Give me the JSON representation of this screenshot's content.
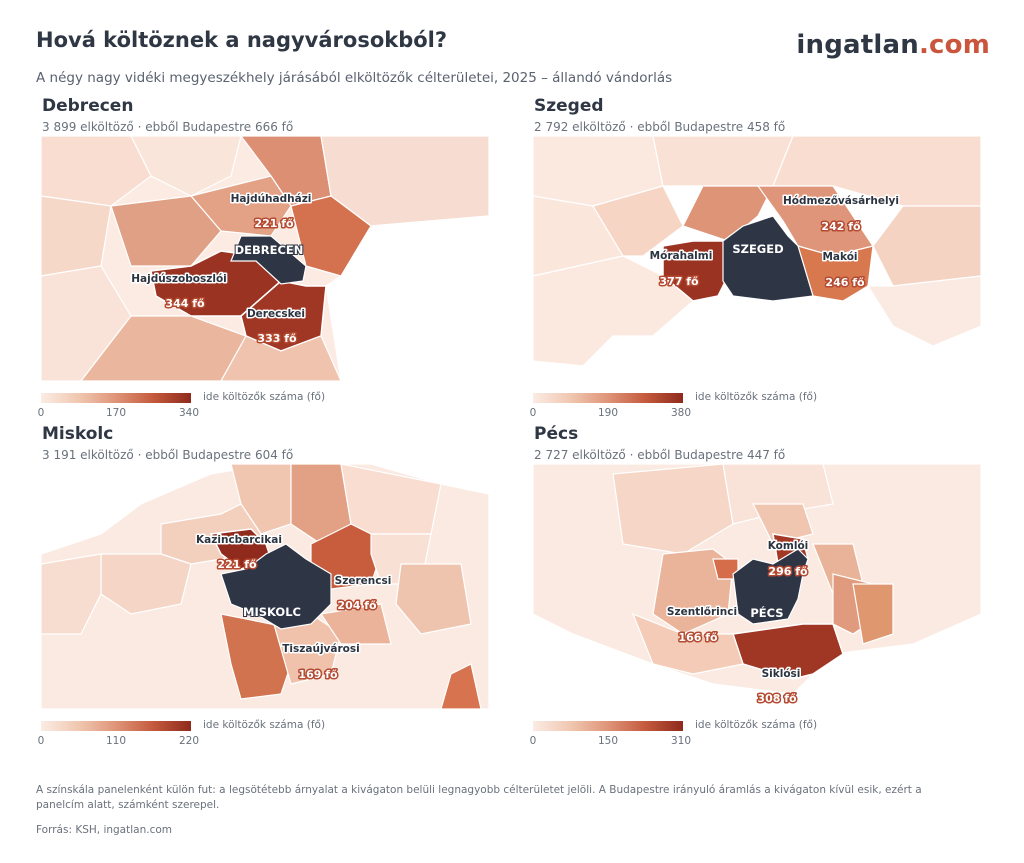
{
  "header": {
    "title": "Hová költöznek a nagyvárosokból?",
    "logo_part1": "ingatlan",
    "logo_part2": ".com",
    "subtitle": "A négy nagy vidéki megyeszékhely járásából elköltözők célterületei, 2025 – állandó vándorlás"
  },
  "colors": {
    "ramp": [
      "#fbece4",
      "#f0c7b1",
      "#df9478",
      "#c45a3d",
      "#8f2a1c"
    ],
    "city": "#2e3545",
    "brand": "#c9553c"
  },
  "panels": [
    {
      "name": "Debrecen",
      "stat": "3 899 elköltöző · ebből Budapestre 666 fő",
      "city_label": "DEBRECEN",
      "legend_label": "ide költözők száma (fő)",
      "ticks": [
        "0",
        "170",
        "340"
      ],
      "regions": [
        {
          "name": "Hajdúhadházi",
          "value_label": "221 fő",
          "value": 221
        },
        {
          "name": "Hajdúszoboszlói",
          "value_label": "344 fő",
          "value": 344
        },
        {
          "name": "Derecskei",
          "value_label": "333 fő",
          "value": 333
        }
      ]
    },
    {
      "name": "Szeged",
      "stat": "2 792 elköltöző · ebből Budapestre 458 fő",
      "city_label": "SZEGED",
      "legend_label": "ide költözők száma (fő)",
      "ticks": [
        "0",
        "190",
        "380"
      ],
      "regions": [
        {
          "name": "Hódmezővásárhelyi",
          "value_label": "242 fő",
          "value": 242
        },
        {
          "name": "Mórahalmi",
          "value_label": "377 fő",
          "value": 377
        },
        {
          "name": "Makói",
          "value_label": "246 fő",
          "value": 246
        }
      ]
    },
    {
      "name": "Miskolc",
      "stat": "3 191 elköltöző · ebből Budapestre 604 fő",
      "city_label": "MISKOLC",
      "legend_label": "ide költözők száma (fő)",
      "ticks": [
        "0",
        "110",
        "220"
      ],
      "regions": [
        {
          "name": "Kazincbarcikai",
          "value_label": "221 fő",
          "value": 221
        },
        {
          "name": "Szerencsi",
          "value_label": "204 fő",
          "value": 204
        },
        {
          "name": "Tiszaújvárosi",
          "value_label": "169 fő",
          "value": 169
        }
      ]
    },
    {
      "name": "Pécs",
      "stat": "2 727 elköltöző · ebből Budapestre 447 fő",
      "city_label": "PÉCS",
      "legend_label": "ide költözők száma (fő)",
      "ticks": [
        "0",
        "150",
        "310"
      ],
      "regions": [
        {
          "name": "Komlói",
          "value_label": "296 fő",
          "value": 296
        },
        {
          "name": "Szentlőrinci",
          "value_label": "166 fő",
          "value": 166
        },
        {
          "name": "Siklósi",
          "value_label": "308 fő",
          "value": 308
        }
      ]
    }
  ],
  "footnote": "A színskála panelenként külön fut: a legsötétebb árnyalat a kivágaton belüli legnagyobb célterületet jelöli. A Budapestre irányuló áramlás a kivágaton kívül esik, ezért a panelcím alatt, számként szerepel.",
  "source": "Forrás: KSH, ingatlan.com"
}
